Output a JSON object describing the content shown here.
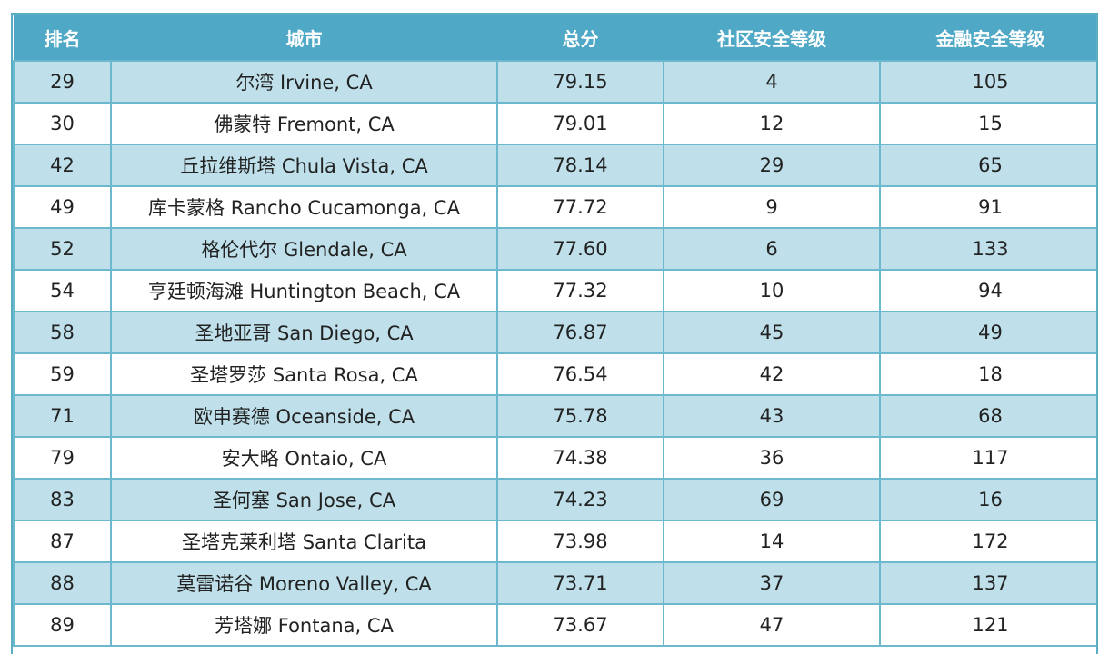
{
  "table": {
    "headers": [
      "排名",
      "城市",
      "总分",
      "社区安全等级",
      "金融安全等级"
    ],
    "rows": [
      [
        "29",
        "尔湾 Irvine, CA",
        "79.15",
        "4",
        "105"
      ],
      [
        "30",
        "佛蒙特 Fremont, CA",
        "79.01",
        "12",
        "15"
      ],
      [
        "42",
        "丘拉维斯塔 Chula Vista, CA",
        "78.14",
        "29",
        "65"
      ],
      [
        "49",
        "库卡蒙格 Rancho Cucamonga, CA",
        "77.72",
        "9",
        "91"
      ],
      [
        "52",
        "格伦代尔 Glendale, CA",
        "77.60",
        "6",
        "133"
      ],
      [
        "54",
        "亨廷顿海滩 Huntington Beach, CA",
        "77.32",
        "10",
        "94"
      ],
      [
        "58",
        "圣地亚哥 San Diego, CA",
        "76.87",
        "45",
        "49"
      ],
      [
        "59",
        "圣塔罗莎  Santa Rosa, CA",
        "76.54",
        "42",
        "18"
      ],
      [
        "71",
        "欧申赛德 Oceanside, CA",
        "75.78",
        "43",
        "68"
      ],
      [
        "79",
        "安大略 Ontaio, CA",
        "74.38",
        "36",
        "117"
      ],
      [
        "83",
        "圣何塞 San Jose, CA",
        "74.23",
        "69",
        "16"
      ],
      [
        "87",
        "圣塔克莱利塔 Santa Clarita",
        "73.98",
        "14",
        "172"
      ],
      [
        "88",
        "莫雷诺谷 Moreno Valley, CA",
        "73.71",
        "37",
        "137"
      ],
      [
        "89",
        "芳塔娜 Fontana, CA",
        "73.67",
        "47",
        "121"
      ]
    ]
  },
  "colors": {
    "header": "#4fa8c5",
    "stripe": "#bfe0ea",
    "border": "#6bb8cf"
  }
}
